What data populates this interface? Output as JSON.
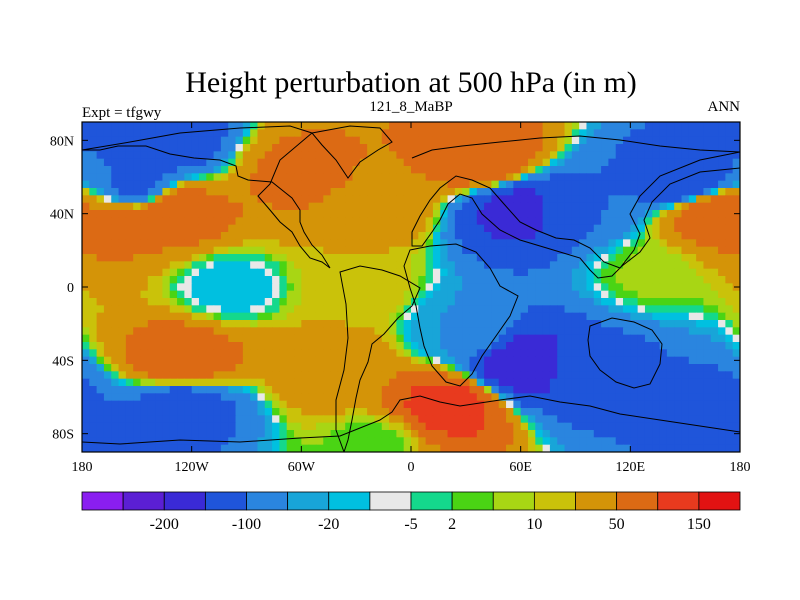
{
  "chart_data": {
    "type": "heatmap",
    "title": "Height perturbation at 500 hPa (in m)",
    "subtitle_left": "Expt = tfgwy",
    "subtitle_center": "121_8_MaBP",
    "subtitle_right": "ANN",
    "x_range": [
      -180,
      180
    ],
    "y_range": [
      -90,
      90
    ],
    "x_ticks": [
      {
        "value": -180,
        "label": "180"
      },
      {
        "value": -120,
        "label": "120W"
      },
      {
        "value": -60,
        "label": "60W"
      },
      {
        "value": 0,
        "label": "0"
      },
      {
        "value": 60,
        "label": "60E"
      },
      {
        "value": 120,
        "label": "120E"
      },
      {
        "value": 180,
        "label": "180"
      }
    ],
    "y_ticks": [
      {
        "value": 80,
        "label": "80N"
      },
      {
        "value": 40,
        "label": "40N"
      },
      {
        "value": 0,
        "label": "0"
      },
      {
        "value": -40,
        "label": "40S"
      },
      {
        "value": -80,
        "label": "80S"
      }
    ],
    "colorbar": {
      "colors": [
        "#8a1ef0",
        "#5b1fd4",
        "#3a2ad6",
        "#1f55da",
        "#2a85df",
        "#18a5d8",
        "#00c0e0",
        "#e8e8e8",
        "#14d88c",
        "#4ad414",
        "#a8d614",
        "#cac20a",
        "#d49408",
        "#dc6a14",
        "#e83a1e",
        "#e21212"
      ],
      "labels": [
        {
          "after_index": 1,
          "text": "-200"
        },
        {
          "after_index": 3,
          "text": "-100"
        },
        {
          "after_index": 5,
          "text": "-20"
        },
        {
          "after_index": 7,
          "text": "-5"
        },
        {
          "after_index": 8,
          "text": "2"
        },
        {
          "after_index": 10,
          "text": "10"
        },
        {
          "after_index": 12,
          "text": "50"
        },
        {
          "after_index": 14,
          "text": "150"
        }
      ]
    },
    "field_features": [
      {
        "lon": -135,
        "lat": 78,
        "value": -80
      },
      {
        "lon": -150,
        "lat": 55,
        "value": -60
      },
      {
        "lon": -130,
        "lat": 42,
        "value": 80
      },
      {
        "lon": -160,
        "lat": 35,
        "value": 60
      },
      {
        "lon": -60,
        "lat": 62,
        "value": 60
      },
      {
        "lon": -20,
        "lat": 45,
        "value": 40
      },
      {
        "lon": 40,
        "lat": 70,
        "value": 90
      },
      {
        "lon": 60,
        "lat": 42,
        "value": -120
      },
      {
        "lon": 90,
        "lat": 44,
        "value": -50
      },
      {
        "lon": 150,
        "lat": 58,
        "value": -90
      },
      {
        "lon": 165,
        "lat": 40,
        "value": 80
      },
      {
        "lon": 130,
        "lat": 8,
        "value": 6
      },
      {
        "lon": -100,
        "lat": 0,
        "value": -8
      },
      {
        "lon": -30,
        "lat": 0,
        "value": 15
      },
      {
        "lon": 30,
        "lat": -25,
        "value": -20
      },
      {
        "lon": 60,
        "lat": -42,
        "value": -140
      },
      {
        "lon": 100,
        "lat": -45,
        "value": -60
      },
      {
        "lon": -125,
        "lat": -40,
        "value": 80
      },
      {
        "lon": -40,
        "lat": -45,
        "value": 40
      },
      {
        "lon": 20,
        "lat": -65,
        "value": 120
      },
      {
        "lon": -125,
        "lat": -65,
        "value": -70
      },
      {
        "lon": 165,
        "lat": -65,
        "value": -60
      },
      {
        "lon": -20,
        "lat": -85,
        "value": 2
      }
    ]
  }
}
